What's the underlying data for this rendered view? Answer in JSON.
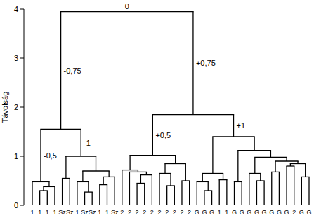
{
  "chart_data": {
    "type": "dendrogram",
    "y_label": "Távolság",
    "ylim": [
      0,
      4
    ],
    "yticks": [
      0,
      1,
      2,
      3,
      4
    ],
    "color": "#000000",
    "tree": {
      "height": 3.95,
      "annotation": "0",
      "children": [
        {
          "height": 1.55,
          "annotation": "-0,75",
          "children": [
            {
              "height": 0.48,
              "annotation": "-0,5",
              "children": [
                {
                  "label": "1"
                },
                {
                  "height": 0.38,
                  "children": [
                    {
                      "height": 0.3,
                      "children": [
                        {
                          "label": "1"
                        },
                        {
                          "label": "1"
                        }
                      ]
                    },
                    {
                      "label": "1"
                    }
                  ]
                }
              ]
            },
            {
              "height": 1.0,
              "annotation": "-1",
              "children": [
                {
                  "height": 0.55,
                  "children": [
                    {
                      "label": "Sz"
                    },
                    {
                      "label": "Sz"
                    }
                  ]
                },
                {
                  "height": 0.7,
                  "children": [
                    {
                      "height": 0.48,
                      "children": [
                        {
                          "label": "1"
                        },
                        {
                          "height": 0.27,
                          "children": [
                            {
                              "label": "Sz"
                            },
                            {
                              "label": "Sz"
                            }
                          ]
                        }
                      ]
                    },
                    {
                      "height": 0.58,
                      "children": [
                        {
                          "height": 0.42,
                          "children": [
                            {
                              "label": "1"
                            },
                            {
                              "label": "1"
                            }
                          ]
                        },
                        {
                          "label": "Sz"
                        }
                      ]
                    }
                  ]
                }
              ]
            }
          ]
        },
        {
          "height": 1.85,
          "annotation": "+0,75",
          "children": [
            {
              "height": 1.02,
              "annotation": "+0,5",
              "children": [
                {
                  "height": 0.72,
                  "children": [
                    {
                      "label": "2"
                    },
                    {
                      "height": 0.68,
                      "children": [
                        {
                          "label": "2"
                        },
                        {
                          "height": 0.62,
                          "children": [
                            {
                              "height": 0.45,
                              "children": [
                                {
                                  "label": "2"
                                },
                                {
                                  "label": "2"
                                }
                              ]
                            },
                            {
                              "label": "2"
                            }
                          ]
                        }
                      ]
                    }
                  ]
                },
                {
                  "height": 0.85,
                  "children": [
                    {
                      "height": 0.65,
                      "children": [
                        {
                          "label": "2"
                        },
                        {
                          "height": 0.4,
                          "children": [
                            {
                              "label": "2"
                            },
                            {
                              "label": "2"
                            }
                          ]
                        }
                      ]
                    },
                    {
                      "height": 0.5,
                      "children": [
                        {
                          "label": "2"
                        },
                        {
                          "label": "2"
                        }
                      ]
                    }
                  ]
                }
              ]
            },
            {
              "height": 1.4,
              "annotation": "+1",
              "children": [
                {
                  "height": 0.65,
                  "children": [
                    {
                      "height": 0.48,
                      "children": [
                        {
                          "label": "G"
                        },
                        {
                          "height": 0.3,
                          "children": [
                            {
                              "label": "G"
                            },
                            {
                              "label": "G"
                            }
                          ]
                        }
                      ]
                    },
                    {
                      "height": 0.52,
                      "children": [
                        {
                          "label": "1"
                        },
                        {
                          "label": "1"
                        }
                      ]
                    }
                  ]
                },
                {
                  "height": 1.12,
                  "children": [
                    {
                      "height": 0.48,
                      "children": [
                        {
                          "label": "G"
                        },
                        {
                          "label": "G"
                        }
                      ]
                    },
                    {
                      "height": 0.98,
                      "children": [
                        {
                          "height": 0.65,
                          "children": [
                            {
                              "label": "G"
                            },
                            {
                              "height": 0.5,
                              "children": [
                                {
                                  "label": "G"
                                },
                                {
                                  "label": "G"
                                }
                              ]
                            }
                          ]
                        },
                        {
                          "height": 0.9,
                          "children": [
                            {
                              "height": 0.68,
                              "children": [
                                {
                                  "label": "G"
                                },
                                {
                                  "label": "G"
                                }
                              ]
                            },
                            {
                              "height": 0.85,
                              "children": [
                                {
                                  "height": 0.8,
                                  "children": [
                                    {
                                      "label": "G"
                                    },
                                    {
                                      "label": "2"
                                    }
                                  ]
                                },
                                {
                                  "height": 0.58,
                                  "children": [
                                    {
                                      "label": "G"
                                    },
                                    {
                                      "label": "G"
                                    }
                                  ]
                                }
                              ]
                            }
                          ]
                        }
                      ]
                    }
                  ]
                }
              ]
            }
          ]
        }
      ]
    }
  }
}
